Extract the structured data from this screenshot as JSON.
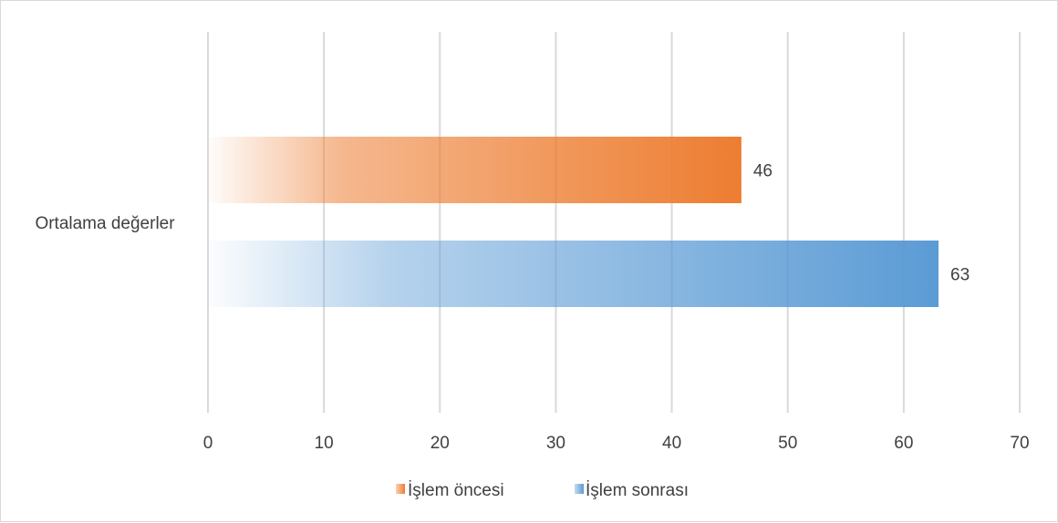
{
  "chart_data": {
    "type": "bar",
    "orientation": "horizontal",
    "categories": [
      "Ortalama değerler"
    ],
    "series": [
      {
        "name": "İşlem öncesi",
        "values": [
          46
        ],
        "color": "#ed7d31"
      },
      {
        "name": "İşlem sonrası",
        "values": [
          63
        ],
        "color": "#5b9bd5"
      }
    ],
    "xlim": [
      0,
      70
    ],
    "ticks": [
      0,
      10,
      20,
      30,
      40,
      50,
      60,
      70
    ],
    "tick_labels": [
      "0",
      "10",
      "20",
      "30",
      "40",
      "50",
      "60",
      "70"
    ],
    "data_labels": [
      "46",
      "63"
    ],
    "grid": true,
    "legend": "bottom"
  },
  "colors": {
    "gridline": "#d9d9d9",
    "text": "#404040"
  }
}
